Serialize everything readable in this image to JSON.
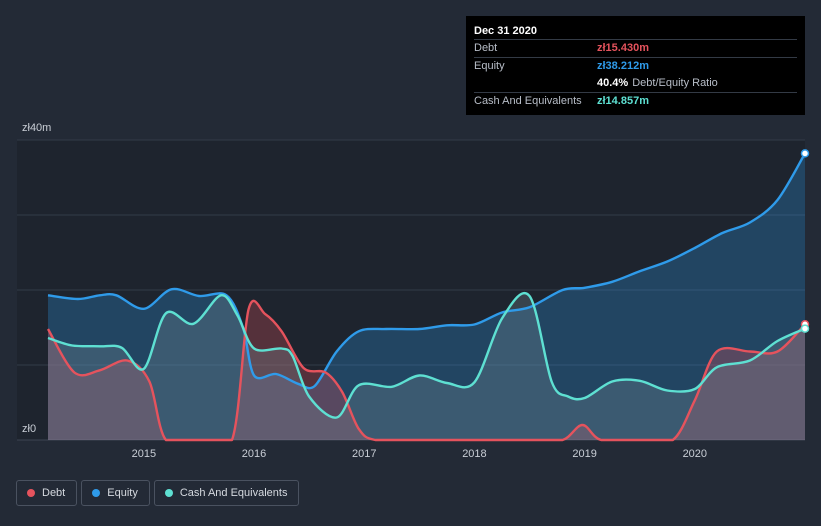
{
  "tooltip": {
    "date": "Dec 31 2020",
    "rows": [
      {
        "label": "Debt",
        "value": "zł15.430m",
        "color": "#e5535d"
      },
      {
        "label": "Equity",
        "value": "zł38.212m",
        "color": "#2f9bea"
      },
      {
        "label": "",
        "value": "40.4%",
        "extra": "Debt/Equity Ratio",
        "color": "#ffffff"
      },
      {
        "label": "Cash And Equivalents",
        "value": "zł14.857m",
        "color": "#5ee0d2"
      }
    ]
  },
  "legend": [
    {
      "label": "Debt",
      "color": "#e5535d"
    },
    {
      "label": "Equity",
      "color": "#2f9bea"
    },
    {
      "label": "Cash And Equivalents",
      "color": "#5ee0d2"
    }
  ],
  "chart_data": {
    "type": "area",
    "y_unit": "zł m",
    "ylim": [
      0,
      40
    ],
    "y_tick_labels": [
      {
        "value": 40,
        "label": "zł40m"
      },
      {
        "value": 0,
        "label": "zł0"
      }
    ],
    "xlim": [
      2014.13,
      2021.0
    ],
    "x_ticks": [
      2015,
      2016,
      2017,
      2018,
      2019,
      2020
    ],
    "grid": true,
    "legend_position": "bottom-left",
    "series": [
      {
        "name": "Debt",
        "color": "#e5535d",
        "points": [
          [
            2014.13,
            14.8
          ],
          [
            2014.37,
            9.0
          ],
          [
            2014.6,
            9.3
          ],
          [
            2014.85,
            10.6
          ],
          [
            2015.05,
            7.8
          ],
          [
            2015.2,
            0
          ],
          [
            2015.5,
            0
          ],
          [
            2015.8,
            0
          ],
          [
            2015.95,
            17.4
          ],
          [
            2016.1,
            16.8
          ],
          [
            2016.25,
            14.5
          ],
          [
            2016.45,
            9.6
          ],
          [
            2016.65,
            9.0
          ],
          [
            2016.8,
            6.4
          ],
          [
            2016.95,
            1.5
          ],
          [
            2017.1,
            0
          ],
          [
            2017.5,
            0
          ],
          [
            2018.0,
            0
          ],
          [
            2018.5,
            0
          ],
          [
            2018.8,
            0
          ],
          [
            2018.98,
            2.0
          ],
          [
            2019.15,
            0
          ],
          [
            2019.5,
            0
          ],
          [
            2019.8,
            0
          ],
          [
            2020.0,
            5.3
          ],
          [
            2020.2,
            11.8
          ],
          [
            2020.5,
            11.8
          ],
          [
            2020.75,
            11.8
          ],
          [
            2021.0,
            15.43
          ]
        ]
      },
      {
        "name": "Equity",
        "color": "#2f9bea",
        "points": [
          [
            2014.13,
            19.3
          ],
          [
            2014.4,
            18.8
          ],
          [
            2014.6,
            19.3
          ],
          [
            2014.75,
            19.3
          ],
          [
            2015.0,
            17.5
          ],
          [
            2015.25,
            20.1
          ],
          [
            2015.5,
            19.2
          ],
          [
            2015.75,
            19.3
          ],
          [
            2015.9,
            15.0
          ],
          [
            2016.0,
            8.6
          ],
          [
            2016.2,
            8.8
          ],
          [
            2016.4,
            7.5
          ],
          [
            2016.55,
            7.2
          ],
          [
            2016.75,
            11.8
          ],
          [
            2016.95,
            14.5
          ],
          [
            2017.2,
            14.8
          ],
          [
            2017.5,
            14.8
          ],
          [
            2017.75,
            15.3
          ],
          [
            2018.0,
            15.4
          ],
          [
            2018.25,
            17.0
          ],
          [
            2018.5,
            17.7
          ],
          [
            2018.8,
            20.0
          ],
          [
            2019.0,
            20.3
          ],
          [
            2019.25,
            21.1
          ],
          [
            2019.5,
            22.5
          ],
          [
            2019.75,
            23.8
          ],
          [
            2020.0,
            25.6
          ],
          [
            2020.25,
            27.6
          ],
          [
            2020.5,
            29.0
          ],
          [
            2020.75,
            32.0
          ],
          [
            2021.0,
            38.212
          ]
        ]
      },
      {
        "name": "Cash And Equivalents",
        "color": "#5ee0d2",
        "points": [
          [
            2014.13,
            13.6
          ],
          [
            2014.35,
            12.6
          ],
          [
            2014.6,
            12.5
          ],
          [
            2014.8,
            12.3
          ],
          [
            2015.0,
            9.5
          ],
          [
            2015.2,
            16.9
          ],
          [
            2015.45,
            15.5
          ],
          [
            2015.7,
            19.3
          ],
          [
            2015.85,
            16.6
          ],
          [
            2016.0,
            12.2
          ],
          [
            2016.25,
            12.2
          ],
          [
            2016.35,
            11.2
          ],
          [
            2016.5,
            5.8
          ],
          [
            2016.75,
            3.0
          ],
          [
            2016.95,
            7.3
          ],
          [
            2017.25,
            7.1
          ],
          [
            2017.5,
            8.6
          ],
          [
            2017.75,
            7.6
          ],
          [
            2018.0,
            7.7
          ],
          [
            2018.25,
            16.2
          ],
          [
            2018.5,
            19.2
          ],
          [
            2018.7,
            7.8
          ],
          [
            2018.85,
            5.8
          ],
          [
            2019.0,
            5.6
          ],
          [
            2019.25,
            7.8
          ],
          [
            2019.5,
            7.9
          ],
          [
            2019.75,
            6.6
          ],
          [
            2020.0,
            6.8
          ],
          [
            2020.2,
            9.7
          ],
          [
            2020.5,
            10.6
          ],
          [
            2020.75,
            13.2
          ],
          [
            2021.0,
            14.857
          ]
        ]
      }
    ]
  }
}
